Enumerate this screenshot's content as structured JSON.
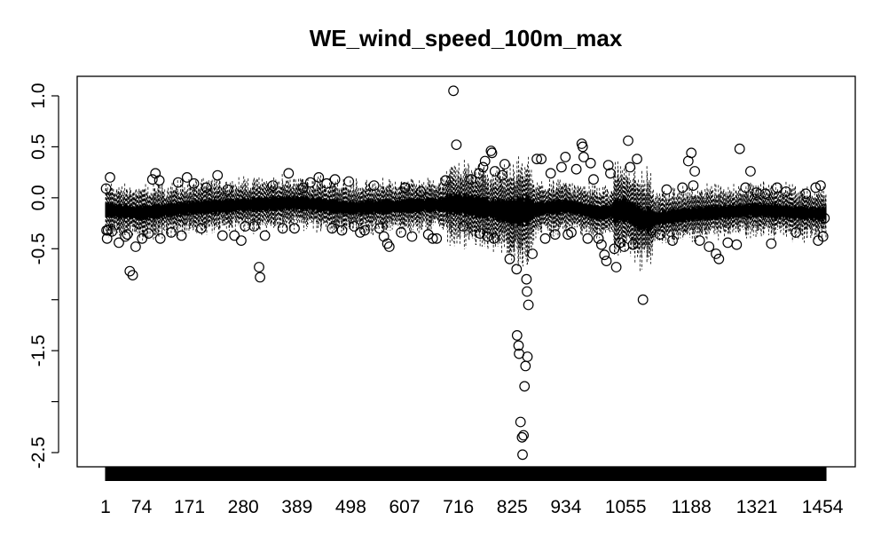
{
  "chart_data": {
    "type": "boxplot",
    "title": "WE_wind_speed_100m_max",
    "xlabel": "",
    "ylabel": "",
    "ylim": [
      -2.7,
      1.1
    ],
    "n_boxes": 1461,
    "x_ticks": [
      1,
      74,
      171,
      280,
      389,
      498,
      607,
      716,
      825,
      934,
      1055,
      1188,
      1321,
      1454
    ],
    "y_ticks": [
      1.0,
      0.5,
      0.0,
      -0.5,
      -1.0,
      -1.5,
      -2.0,
      -2.5
    ],
    "y_tick_labels": [
      "1.0",
      "0.5",
      "0.0",
      "-0.5",
      "",
      "-1.5",
      "",
      "-2.5"
    ],
    "median_baseline": [
      [
        1,
        -0.12
      ],
      [
        74,
        -0.15
      ],
      [
        171,
        -0.1
      ],
      [
        280,
        -0.07
      ],
      [
        389,
        -0.05
      ],
      [
        498,
        -0.1
      ],
      [
        607,
        -0.08
      ],
      [
        716,
        -0.06
      ],
      [
        825,
        -0.14
      ],
      [
        934,
        -0.08
      ],
      [
        1000,
        -0.15
      ],
      [
        1055,
        -0.12
      ],
      [
        1090,
        -0.22
      ],
      [
        1188,
        -0.16
      ],
      [
        1321,
        -0.12
      ],
      [
        1454,
        -0.16
      ],
      [
        1461,
        -0.15
      ]
    ],
    "outliers": [
      [
        2,
        0.09
      ],
      [
        3,
        -0.32
      ],
      [
        4,
        -0.4
      ],
      [
        6,
        -0.32
      ],
      [
        10,
        0.2
      ],
      [
        14,
        -0.33
      ],
      [
        28,
        -0.44
      ],
      [
        41,
        -0.38
      ],
      [
        45,
        -0.36
      ],
      [
        50,
        -0.72
      ],
      [
        56,
        -0.76
      ],
      [
        62,
        -0.48
      ],
      [
        75,
        -0.4
      ],
      [
        88,
        -0.35
      ],
      [
        96,
        0.18
      ],
      [
        102,
        0.24
      ],
      [
        110,
        0.17
      ],
      [
        112,
        -0.4
      ],
      [
        134,
        -0.34
      ],
      [
        148,
        0.15
      ],
      [
        155,
        -0.37
      ],
      [
        166,
        0.2
      ],
      [
        180,
        0.14
      ],
      [
        195,
        -0.3
      ],
      [
        205,
        0.1
      ],
      [
        228,
        0.22
      ],
      [
        238,
        -0.37
      ],
      [
        248,
        0.08
      ],
      [
        262,
        -0.37
      ],
      [
        276,
        -0.42
      ],
      [
        284,
        -0.28
      ],
      [
        302,
        -0.28
      ],
      [
        312,
        -0.68
      ],
      [
        314,
        -0.78
      ],
      [
        324,
        -0.37
      ],
      [
        340,
        0.12
      ],
      [
        360,
        -0.3
      ],
      [
        372,
        0.24
      ],
      [
        384,
        -0.3
      ],
      [
        402,
        0.1
      ],
      [
        416,
        0.15
      ],
      [
        433,
        0.2
      ],
      [
        449,
        0.14
      ],
      [
        460,
        -0.3
      ],
      [
        466,
        0.18
      ],
      [
        480,
        -0.32
      ],
      [
        494,
        0.16
      ],
      [
        505,
        -0.28
      ],
      [
        517,
        -0.34
      ],
      [
        526,
        -0.32
      ],
      [
        545,
        0.12
      ],
      [
        556,
        -0.3
      ],
      [
        565,
        -0.38
      ],
      [
        572,
        -0.45
      ],
      [
        576,
        -0.48
      ],
      [
        600,
        -0.34
      ],
      [
        608,
        0.1
      ],
      [
        622,
        -0.38
      ],
      [
        640,
        0.06
      ],
      [
        655,
        -0.36
      ],
      [
        664,
        -0.4
      ],
      [
        672,
        -0.4
      ],
      [
        690,
        0.17
      ],
      [
        706,
        1.05
      ],
      [
        712,
        0.52
      ],
      [
        726,
        -0.28
      ],
      [
        742,
        0.18
      ],
      [
        758,
        0.24
      ],
      [
        760,
        -0.35
      ],
      [
        766,
        0.3
      ],
      [
        770,
        0.36
      ],
      [
        775,
        -0.38
      ],
      [
        782,
        0.46
      ],
      [
        784,
        0.44
      ],
      [
        788,
        -0.4
      ],
      [
        790,
        0.26
      ],
      [
        805,
        0.22
      ],
      [
        810,
        0.33
      ],
      [
        820,
        -0.6
      ],
      [
        834,
        -0.7
      ],
      [
        835,
        -1.35
      ],
      [
        838,
        -1.45
      ],
      [
        839,
        -1.53
      ],
      [
        842,
        -2.2
      ],
      [
        845,
        -2.35
      ],
      [
        846,
        -2.52
      ],
      [
        848,
        -2.33
      ],
      [
        850,
        -1.85
      ],
      [
        852,
        -1.65
      ],
      [
        854,
        -0.8
      ],
      [
        855,
        -0.92
      ],
      [
        856,
        -1.56
      ],
      [
        858,
        -1.05
      ],
      [
        866,
        -0.55
      ],
      [
        875,
        0.38
      ],
      [
        884,
        0.38
      ],
      [
        892,
        -0.4
      ],
      [
        903,
        0.24
      ],
      [
        912,
        -0.36
      ],
      [
        925,
        0.3
      ],
      [
        933,
        0.4
      ],
      [
        938,
        -0.36
      ],
      [
        945,
        -0.34
      ],
      [
        955,
        0.28
      ],
      [
        966,
        0.53
      ],
      [
        968,
        0.5
      ],
      [
        970,
        0.4
      ],
      [
        978,
        -0.4
      ],
      [
        984,
        0.34
      ],
      [
        990,
        0.18
      ],
      [
        1000,
        -0.4
      ],
      [
        1006,
        -0.46
      ],
      [
        1012,
        -0.56
      ],
      [
        1016,
        -0.62
      ],
      [
        1020,
        0.32
      ],
      [
        1024,
        0.24
      ],
      [
        1032,
        -0.5
      ],
      [
        1036,
        -0.68
      ],
      [
        1044,
        -0.44
      ],
      [
        1052,
        -0.48
      ],
      [
        1060,
        0.56
      ],
      [
        1064,
        0.3
      ],
      [
        1070,
        -0.46
      ],
      [
        1078,
        0.38
      ],
      [
        1090,
        -1.0
      ],
      [
        1108,
        -0.32
      ],
      [
        1124,
        -0.36
      ],
      [
        1138,
        0.08
      ],
      [
        1150,
        -0.42
      ],
      [
        1170,
        0.1
      ],
      [
        1182,
        0.36
      ],
      [
        1188,
        0.44
      ],
      [
        1192,
        0.12
      ],
      [
        1195,
        0.26
      ],
      [
        1205,
        -0.42
      ],
      [
        1224,
        -0.48
      ],
      [
        1238,
        -0.55
      ],
      [
        1244,
        -0.6
      ],
      [
        1262,
        -0.44
      ],
      [
        1280,
        -0.46
      ],
      [
        1286,
        0.48
      ],
      [
        1298,
        0.1
      ],
      [
        1308,
        0.26
      ],
      [
        1320,
        0.05
      ],
      [
        1338,
        0.04
      ],
      [
        1350,
        -0.45
      ],
      [
        1362,
        0.1
      ],
      [
        1380,
        0.06
      ],
      [
        1400,
        -0.34
      ],
      [
        1420,
        0.04
      ],
      [
        1440,
        0.1
      ],
      [
        1445,
        -0.42
      ],
      [
        1450,
        0.12
      ],
      [
        1455,
        -0.38
      ],
      [
        1458,
        -0.2
      ]
    ]
  }
}
